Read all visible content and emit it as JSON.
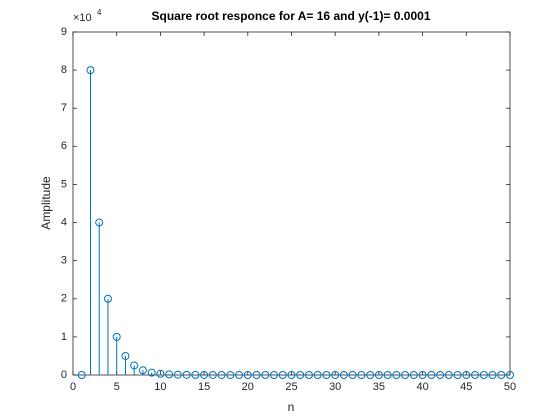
{
  "chart_data": {
    "type": "stem",
    "title": "Square root responce for A= 16 and y(-1)= 0.0001",
    "xlabel": "n",
    "ylabel": "Amplitude",
    "y_multiplier": "×10",
    "y_multiplier_exponent": "4",
    "x": [
      1,
      2,
      3,
      4,
      5,
      6,
      7,
      8,
      9,
      10,
      11,
      12,
      13,
      14,
      15,
      16,
      17,
      18,
      19,
      20,
      21,
      22,
      23,
      24,
      25,
      26,
      27,
      28,
      29,
      30,
      31,
      32,
      33,
      34,
      35,
      36,
      37,
      38,
      39,
      40,
      41,
      42,
      43,
      44,
      45,
      46,
      47,
      48,
      49,
      50
    ],
    "values": [
      0.0001,
      80000,
      40000,
      20000,
      10000,
      5000,
      2500,
      1250,
      625,
      312.5,
      156.3,
      78.2,
      39.2,
      19.8,
      10.3,
      5.93,
      4.31,
      4.01,
      4,
      4,
      4,
      4,
      4,
      4,
      4,
      4,
      4,
      4,
      4,
      4,
      4,
      4,
      4,
      4,
      4,
      4,
      4,
      4,
      4,
      4,
      4,
      4,
      4,
      4,
      4,
      4,
      4,
      4,
      4,
      4
    ],
    "color": "#0072bd",
    "xlim": [
      0,
      50
    ],
    "xticks": [
      0,
      5,
      10,
      15,
      20,
      25,
      30,
      35,
      40,
      45,
      50
    ],
    "ylim": [
      0,
      90000
    ],
    "yticks": [
      {
        "value": 0,
        "label": "0"
      },
      {
        "value": 10000,
        "label": "1"
      },
      {
        "value": 20000,
        "label": "2"
      },
      {
        "value": 30000,
        "label": "3"
      },
      {
        "value": 40000,
        "label": "4"
      },
      {
        "value": 50000,
        "label": "5"
      },
      {
        "value": 60000,
        "label": "6"
      },
      {
        "value": 70000,
        "label": "7"
      },
      {
        "value": 80000,
        "label": "8"
      },
      {
        "value": 90000,
        "label": "9"
      }
    ],
    "grid": false
  }
}
